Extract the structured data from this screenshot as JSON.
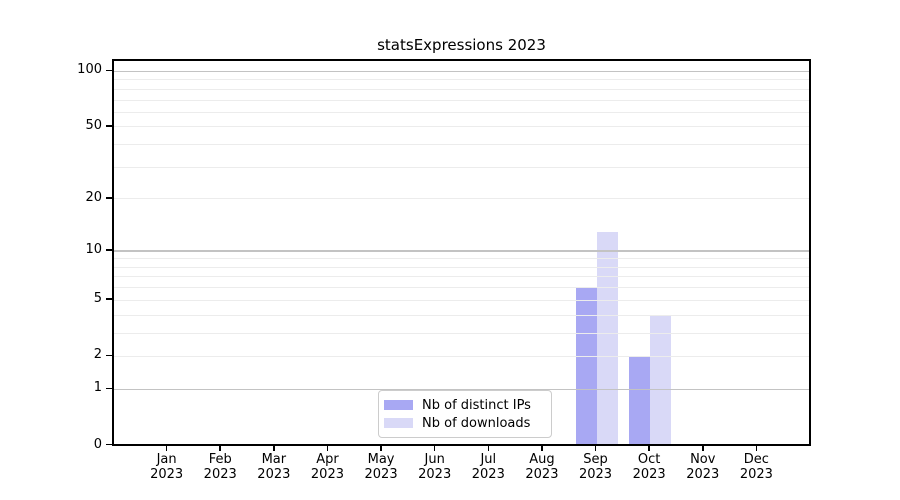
{
  "chart_data": {
    "type": "bar",
    "title": "statsExpressions 2023",
    "xlabel": "",
    "ylabel": "",
    "x_tick_labels": [
      [
        "Jan",
        "2023"
      ],
      [
        "Feb",
        "2023"
      ],
      [
        "Mar",
        "2023"
      ],
      [
        "Apr",
        "2023"
      ],
      [
        "May",
        "2023"
      ],
      [
        "Jun",
        "2023"
      ],
      [
        "Jul",
        "2023"
      ],
      [
        "Aug",
        "2023"
      ],
      [
        "Sep",
        "2023"
      ],
      [
        "Oct",
        "2023"
      ],
      [
        "Nov",
        "2023"
      ],
      [
        "Dec",
        "2023"
      ]
    ],
    "series": [
      {
        "name": "Nb of distinct IPs",
        "color": "#a8a8f3",
        "values": [
          0,
          0,
          0,
          0,
          0,
          0,
          0,
          0,
          6,
          2,
          0,
          0
        ]
      },
      {
        "name": "Nb of downloads",
        "color": "#d9d9f7",
        "values": [
          0,
          0,
          0,
          0,
          0,
          0,
          0,
          0,
          13,
          4,
          0,
          0
        ]
      }
    ],
    "yscale": "log1p",
    "ylim": [
      0,
      115
    ],
    "yticks": [
      0,
      1,
      2,
      5,
      10,
      20,
      50,
      100
    ],
    "minor_yticks": [
      3,
      4,
      6,
      7,
      8,
      9,
      30,
      40,
      60,
      70,
      80,
      90
    ],
    "emphasized_gridlines": [
      1,
      10,
      100
    ],
    "grid": "on",
    "legend_position": "lower center",
    "colors": {
      "grid_major": "#c3c3c3",
      "grid_minor": "#ececec",
      "axis": "#000000",
      "legend_border": "#cccccc",
      "background": "#ffffff"
    }
  }
}
